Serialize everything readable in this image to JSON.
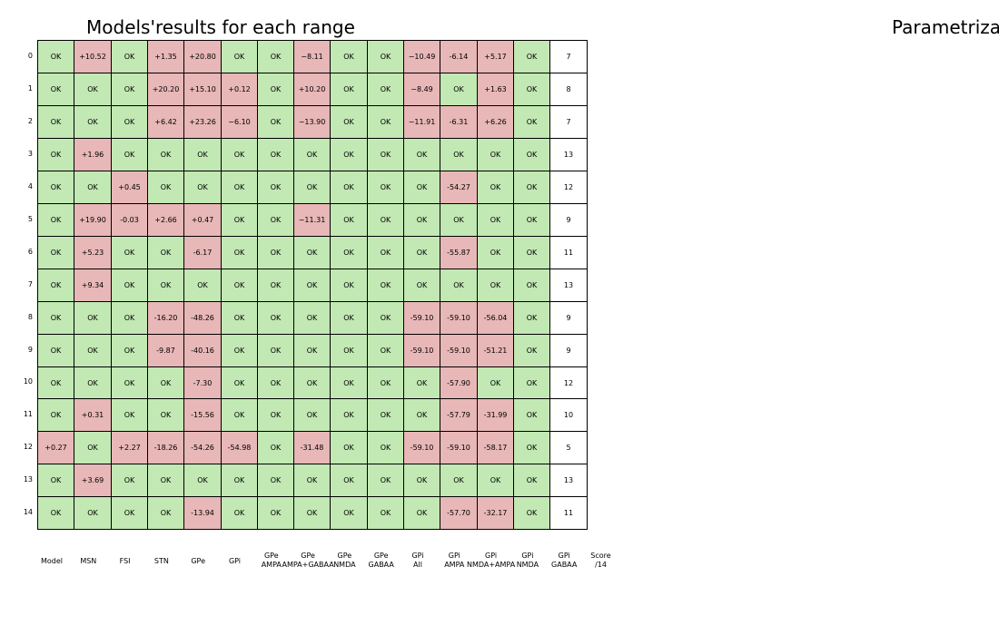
{
  "titles": {
    "left": "Models'results for each range",
    "right": "Parametriza"
  },
  "colors": {
    "ok": "#c2e8b4",
    "fail": "#e8b7b7",
    "score": "#ffffff",
    "border": "#000000"
  },
  "chart_data": {
    "type": "table",
    "row_labels": [
      "0",
      "1",
      "2",
      "3",
      "4",
      "5",
      "6",
      "7",
      "8",
      "9",
      "10",
      "11",
      "12",
      "13",
      "14"
    ],
    "column_labels": [
      "Model",
      "MSN",
      "FSI",
      "STN",
      "GPe",
      "GPi",
      "GPe\nAMPA",
      "GPe\nAMPA+GABAA",
      "GPe\nNMDA",
      "GPe\nGABAA",
      "GPi\nAll",
      "GPi\nAMPA",
      "GPi\nNMDA+AMPA",
      "GPi\nNMDA",
      "GPi\nGABAA",
      "Score\n/14"
    ],
    "rows": [
      [
        "OK",
        "+10.52",
        "OK",
        "+1.35",
        "+20.80",
        "OK",
        "OK",
        "−8.11",
        "OK",
        "OK",
        "−10.49",
        "-6.14",
        "+5.17",
        "OK",
        "7"
      ],
      [
        "OK",
        "OK",
        "OK",
        "+20.20",
        "+15.10",
        "+0.12",
        "OK",
        "+10.20",
        "OK",
        "OK",
        "−8.49",
        "OK",
        "+1.63",
        "OK",
        "8"
      ],
      [
        "OK",
        "OK",
        "OK",
        "+6.42",
        "+23.26",
        "−6.10",
        "OK",
        "−13.90",
        "OK",
        "OK",
        "−11.91",
        "-6.31",
        "+6.26",
        "OK",
        "7"
      ],
      [
        "OK",
        "+1.96",
        "OK",
        "OK",
        "OK",
        "OK",
        "OK",
        "OK",
        "OK",
        "OK",
        "OK",
        "OK",
        "OK",
        "OK",
        "13"
      ],
      [
        "OK",
        "OK",
        "+0.45",
        "OK",
        "OK",
        "OK",
        "OK",
        "OK",
        "OK",
        "OK",
        "OK",
        "-54.27",
        "OK",
        "OK",
        "12"
      ],
      [
        "OK",
        "+19.90",
        "-0.03",
        "+2.66",
        "+0.47",
        "OK",
        "OK",
        "−11.31",
        "OK",
        "OK",
        "OK",
        "OK",
        "OK",
        "OK",
        "9"
      ],
      [
        "OK",
        "+5.23",
        "OK",
        "OK",
        "-6.17",
        "OK",
        "OK",
        "OK",
        "OK",
        "OK",
        "OK",
        "-55.87",
        "OK",
        "OK",
        "11"
      ],
      [
        "OK",
        "+9.34",
        "OK",
        "OK",
        "OK",
        "OK",
        "OK",
        "OK",
        "OK",
        "OK",
        "OK",
        "OK",
        "OK",
        "OK",
        "13"
      ],
      [
        "OK",
        "OK",
        "OK",
        "-16.20",
        "-48.26",
        "OK",
        "OK",
        "OK",
        "OK",
        "OK",
        "-59.10",
        "-59.10",
        "-56.04",
        "OK",
        "9"
      ],
      [
        "OK",
        "OK",
        "OK",
        "-9.87",
        "-40.16",
        "OK",
        "OK",
        "OK",
        "OK",
        "OK",
        "-59.10",
        "-59.10",
        "-51.21",
        "OK",
        "9"
      ],
      [
        "OK",
        "OK",
        "OK",
        "OK",
        "-7.30",
        "OK",
        "OK",
        "OK",
        "OK",
        "OK",
        "OK",
        "-57.90",
        "OK",
        "OK",
        "12"
      ],
      [
        "OK",
        "+0.31",
        "OK",
        "OK",
        "-15.56",
        "OK",
        "OK",
        "OK",
        "OK",
        "OK",
        "OK",
        "-57.79",
        "-31.99",
        "OK",
        "10"
      ],
      [
        "+0.27",
        "OK",
        "+2.27",
        "-18.26",
        "-54.26",
        "-54.98",
        "OK",
        "-31.48",
        "OK",
        "OK",
        "-59.10",
        "-59.10",
        "-58.17",
        "OK",
        "5"
      ],
      [
        "OK",
        "+3.69",
        "OK",
        "OK",
        "OK",
        "OK",
        "OK",
        "OK",
        "OK",
        "OK",
        "OK",
        "OK",
        "OK",
        "OK",
        "13"
      ],
      [
        "OK",
        "OK",
        "OK",
        "OK",
        "-13.94",
        "OK",
        "OK",
        "OK",
        "OK",
        "OK",
        "OK",
        "-57.70",
        "-32.17",
        "OK",
        "11"
      ]
    ]
  }
}
